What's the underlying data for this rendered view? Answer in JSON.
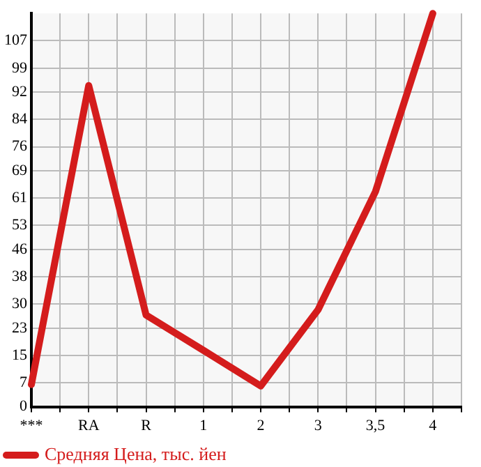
{
  "chart_data": {
    "type": "line",
    "categories": [
      "***",
      "RA",
      "R",
      "1",
      "2",
      "3",
      "3,5",
      "4"
    ],
    "series": [
      {
        "name": "Средняя Цена, тыс. йен",
        "color": "#d41c1c",
        "values": [
          6.5,
          93.9,
          26.8,
          16.5,
          6.1,
          28.4,
          62.9,
          115
        ]
      }
    ],
    "ylim": [
      0,
      115
    ],
    "yticks": [
      0,
      7,
      15,
      23,
      30,
      38,
      46,
      53,
      61,
      69,
      76,
      84,
      92,
      99,
      107
    ],
    "grid": true,
    "legend": "bottom",
    "marker": "none",
    "line_style": "solid"
  }
}
